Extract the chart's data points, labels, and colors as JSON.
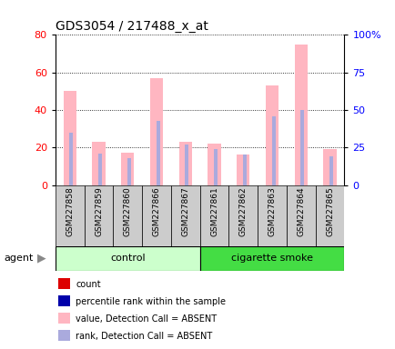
{
  "title": "GDS3054 / 217488_x_at",
  "samples": [
    "GSM227858",
    "GSM227859",
    "GSM227860",
    "GSM227866",
    "GSM227867",
    "GSM227861",
    "GSM227862",
    "GSM227863",
    "GSM227864",
    "GSM227865"
  ],
  "control_count": 5,
  "smoke_count": 5,
  "control_label": "control",
  "smoke_label": "cigarette smoke",
  "agent_label": "agent",
  "values_absent": [
    50,
    23,
    17,
    57,
    23,
    22,
    16,
    53,
    75,
    19
  ],
  "ranks_absent": [
    35,
    21,
    18,
    43,
    27,
    24,
    20,
    46,
    50,
    19
  ],
  "ylim_left": [
    0,
    80
  ],
  "ylim_right": [
    0,
    100
  ],
  "yticks_left": [
    0,
    20,
    40,
    60,
    80
  ],
  "yticks_right": [
    0,
    25,
    50,
    75,
    100
  ],
  "yticklabels_right": [
    "0",
    "25",
    "50",
    "75",
    "100%"
  ],
  "value_absent_color": "#FFB6C1",
  "rank_absent_color": "#AAAADD",
  "count_color": "#DD0000",
  "percentile_color": "#0000AA",
  "grid_color": "black",
  "bg_color": "#FFFFFF",
  "tick_bg": "#CCCCCC",
  "control_bg": "#CCFFCC",
  "smoke_bg": "#44DD44",
  "group_label_fontsize": 8,
  "title_fontsize": 10,
  "legend_fontsize": 7
}
